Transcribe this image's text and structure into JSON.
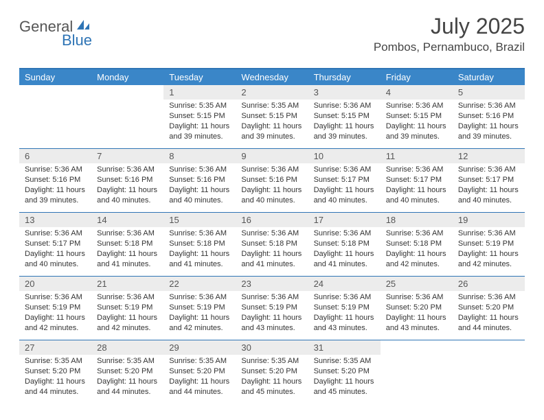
{
  "logo": {
    "general": "General",
    "blue": "Blue"
  },
  "title": "July 2025",
  "location": "Pombos, Pernambuco, Brazil",
  "colors": {
    "header_bar": "#3a86c8",
    "border": "#2e74b5",
    "daynum_bg": "#ececec",
    "text": "#333333",
    "page_bg": "#ffffff"
  },
  "typography": {
    "title_size": 32,
    "location_size": 17,
    "dayheader_size": 13,
    "daynum_size": 13,
    "body_size": 11
  },
  "day_headers": [
    "Sunday",
    "Monday",
    "Tuesday",
    "Wednesday",
    "Thursday",
    "Friday",
    "Saturday"
  ],
  "weeks": [
    [
      {
        "blank": true
      },
      {
        "blank": true
      },
      {
        "num": "1",
        "sunrise": "Sunrise: 5:35 AM",
        "sunset": "Sunset: 5:15 PM",
        "daylight1": "Daylight: 11 hours",
        "daylight2": "and 39 minutes."
      },
      {
        "num": "2",
        "sunrise": "Sunrise: 5:35 AM",
        "sunset": "Sunset: 5:15 PM",
        "daylight1": "Daylight: 11 hours",
        "daylight2": "and 39 minutes."
      },
      {
        "num": "3",
        "sunrise": "Sunrise: 5:36 AM",
        "sunset": "Sunset: 5:15 PM",
        "daylight1": "Daylight: 11 hours",
        "daylight2": "and 39 minutes."
      },
      {
        "num": "4",
        "sunrise": "Sunrise: 5:36 AM",
        "sunset": "Sunset: 5:15 PM",
        "daylight1": "Daylight: 11 hours",
        "daylight2": "and 39 minutes."
      },
      {
        "num": "5",
        "sunrise": "Sunrise: 5:36 AM",
        "sunset": "Sunset: 5:16 PM",
        "daylight1": "Daylight: 11 hours",
        "daylight2": "and 39 minutes."
      }
    ],
    [
      {
        "num": "6",
        "sunrise": "Sunrise: 5:36 AM",
        "sunset": "Sunset: 5:16 PM",
        "daylight1": "Daylight: 11 hours",
        "daylight2": "and 39 minutes."
      },
      {
        "num": "7",
        "sunrise": "Sunrise: 5:36 AM",
        "sunset": "Sunset: 5:16 PM",
        "daylight1": "Daylight: 11 hours",
        "daylight2": "and 40 minutes."
      },
      {
        "num": "8",
        "sunrise": "Sunrise: 5:36 AM",
        "sunset": "Sunset: 5:16 PM",
        "daylight1": "Daylight: 11 hours",
        "daylight2": "and 40 minutes."
      },
      {
        "num": "9",
        "sunrise": "Sunrise: 5:36 AM",
        "sunset": "Sunset: 5:16 PM",
        "daylight1": "Daylight: 11 hours",
        "daylight2": "and 40 minutes."
      },
      {
        "num": "10",
        "sunrise": "Sunrise: 5:36 AM",
        "sunset": "Sunset: 5:17 PM",
        "daylight1": "Daylight: 11 hours",
        "daylight2": "and 40 minutes."
      },
      {
        "num": "11",
        "sunrise": "Sunrise: 5:36 AM",
        "sunset": "Sunset: 5:17 PM",
        "daylight1": "Daylight: 11 hours",
        "daylight2": "and 40 minutes."
      },
      {
        "num": "12",
        "sunrise": "Sunrise: 5:36 AM",
        "sunset": "Sunset: 5:17 PM",
        "daylight1": "Daylight: 11 hours",
        "daylight2": "and 40 minutes."
      }
    ],
    [
      {
        "num": "13",
        "sunrise": "Sunrise: 5:36 AM",
        "sunset": "Sunset: 5:17 PM",
        "daylight1": "Daylight: 11 hours",
        "daylight2": "and 40 minutes."
      },
      {
        "num": "14",
        "sunrise": "Sunrise: 5:36 AM",
        "sunset": "Sunset: 5:18 PM",
        "daylight1": "Daylight: 11 hours",
        "daylight2": "and 41 minutes."
      },
      {
        "num": "15",
        "sunrise": "Sunrise: 5:36 AM",
        "sunset": "Sunset: 5:18 PM",
        "daylight1": "Daylight: 11 hours",
        "daylight2": "and 41 minutes."
      },
      {
        "num": "16",
        "sunrise": "Sunrise: 5:36 AM",
        "sunset": "Sunset: 5:18 PM",
        "daylight1": "Daylight: 11 hours",
        "daylight2": "and 41 minutes."
      },
      {
        "num": "17",
        "sunrise": "Sunrise: 5:36 AM",
        "sunset": "Sunset: 5:18 PM",
        "daylight1": "Daylight: 11 hours",
        "daylight2": "and 41 minutes."
      },
      {
        "num": "18",
        "sunrise": "Sunrise: 5:36 AM",
        "sunset": "Sunset: 5:18 PM",
        "daylight1": "Daylight: 11 hours",
        "daylight2": "and 42 minutes."
      },
      {
        "num": "19",
        "sunrise": "Sunrise: 5:36 AM",
        "sunset": "Sunset: 5:19 PM",
        "daylight1": "Daylight: 11 hours",
        "daylight2": "and 42 minutes."
      }
    ],
    [
      {
        "num": "20",
        "sunrise": "Sunrise: 5:36 AM",
        "sunset": "Sunset: 5:19 PM",
        "daylight1": "Daylight: 11 hours",
        "daylight2": "and 42 minutes."
      },
      {
        "num": "21",
        "sunrise": "Sunrise: 5:36 AM",
        "sunset": "Sunset: 5:19 PM",
        "daylight1": "Daylight: 11 hours",
        "daylight2": "and 42 minutes."
      },
      {
        "num": "22",
        "sunrise": "Sunrise: 5:36 AM",
        "sunset": "Sunset: 5:19 PM",
        "daylight1": "Daylight: 11 hours",
        "daylight2": "and 42 minutes."
      },
      {
        "num": "23",
        "sunrise": "Sunrise: 5:36 AM",
        "sunset": "Sunset: 5:19 PM",
        "daylight1": "Daylight: 11 hours",
        "daylight2": "and 43 minutes."
      },
      {
        "num": "24",
        "sunrise": "Sunrise: 5:36 AM",
        "sunset": "Sunset: 5:19 PM",
        "daylight1": "Daylight: 11 hours",
        "daylight2": "and 43 minutes."
      },
      {
        "num": "25",
        "sunrise": "Sunrise: 5:36 AM",
        "sunset": "Sunset: 5:20 PM",
        "daylight1": "Daylight: 11 hours",
        "daylight2": "and 43 minutes."
      },
      {
        "num": "26",
        "sunrise": "Sunrise: 5:36 AM",
        "sunset": "Sunset: 5:20 PM",
        "daylight1": "Daylight: 11 hours",
        "daylight2": "and 44 minutes."
      }
    ],
    [
      {
        "num": "27",
        "sunrise": "Sunrise: 5:35 AM",
        "sunset": "Sunset: 5:20 PM",
        "daylight1": "Daylight: 11 hours",
        "daylight2": "and 44 minutes."
      },
      {
        "num": "28",
        "sunrise": "Sunrise: 5:35 AM",
        "sunset": "Sunset: 5:20 PM",
        "daylight1": "Daylight: 11 hours",
        "daylight2": "and 44 minutes."
      },
      {
        "num": "29",
        "sunrise": "Sunrise: 5:35 AM",
        "sunset": "Sunset: 5:20 PM",
        "daylight1": "Daylight: 11 hours",
        "daylight2": "and 44 minutes."
      },
      {
        "num": "30",
        "sunrise": "Sunrise: 5:35 AM",
        "sunset": "Sunset: 5:20 PM",
        "daylight1": "Daylight: 11 hours",
        "daylight2": "and 45 minutes."
      },
      {
        "num": "31",
        "sunrise": "Sunrise: 5:35 AM",
        "sunset": "Sunset: 5:20 PM",
        "daylight1": "Daylight: 11 hours",
        "daylight2": "and 45 minutes."
      },
      {
        "blank": true
      },
      {
        "blank": true
      }
    ]
  ]
}
